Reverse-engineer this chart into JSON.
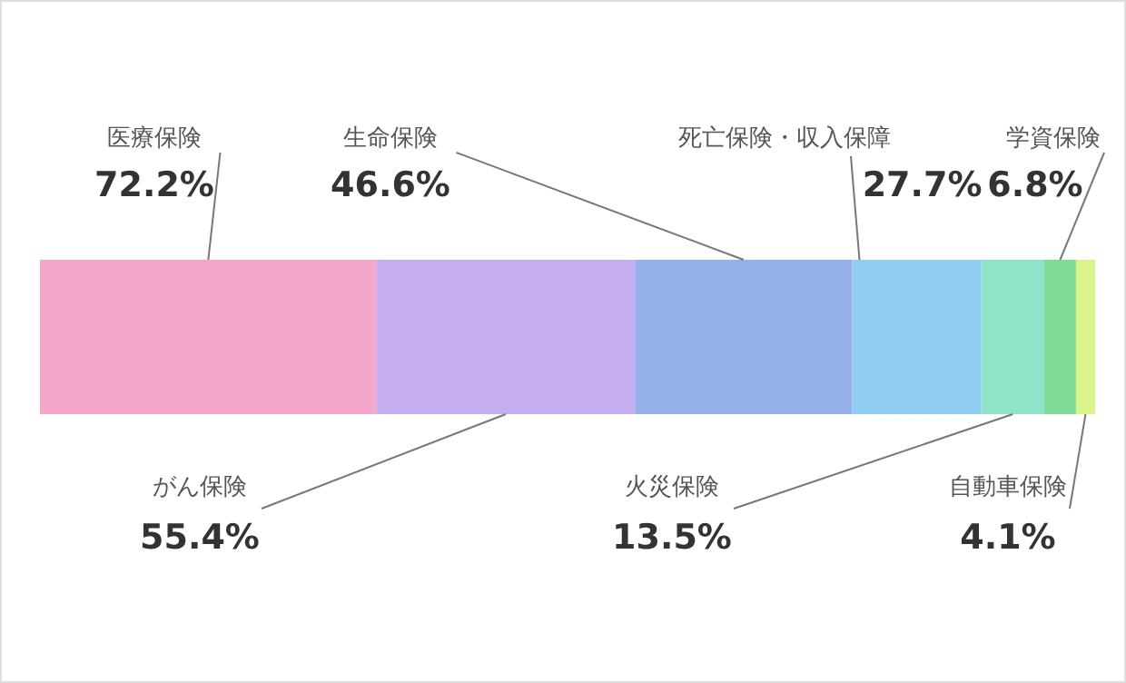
{
  "chart_data": {
    "type": "bar",
    "orientation": "horizontal",
    "stacked": true,
    "categories": [
      null
    ],
    "legend": false,
    "series": [
      {
        "name": "医療保険",
        "color": "#f4a7cb",
        "values": [
          72.2
        ],
        "value_labels": [
          "72.2%"
        ]
      },
      {
        "name": "がん保険",
        "color": "#c5aef0",
        "values": [
          55.4
        ],
        "value_labels": [
          "55.4%"
        ]
      },
      {
        "name": "生命保険",
        "color": "#96b0ea",
        "values": [
          46.6
        ],
        "value_labels": [
          "46.6%"
        ]
      },
      {
        "name": "死亡保険・収入保障",
        "color": "#91cdf3",
        "values": [
          27.7
        ],
        "value_labels": [
          "27.7%"
        ]
      },
      {
        "name": "火災保険",
        "color": "#8fe3c8",
        "values": [
          13.5
        ],
        "value_labels": [
          "13.5%"
        ]
      },
      {
        "name": "学資保険",
        "color": "#7fdc95",
        "values": [
          6.8
        ],
        "value_labels": [
          "6.8%"
        ]
      },
      {
        "name": "自動車保険",
        "color": "#d9f58a",
        "values": [
          4.1
        ],
        "value_labels": [
          "4.1%"
        ]
      }
    ]
  }
}
